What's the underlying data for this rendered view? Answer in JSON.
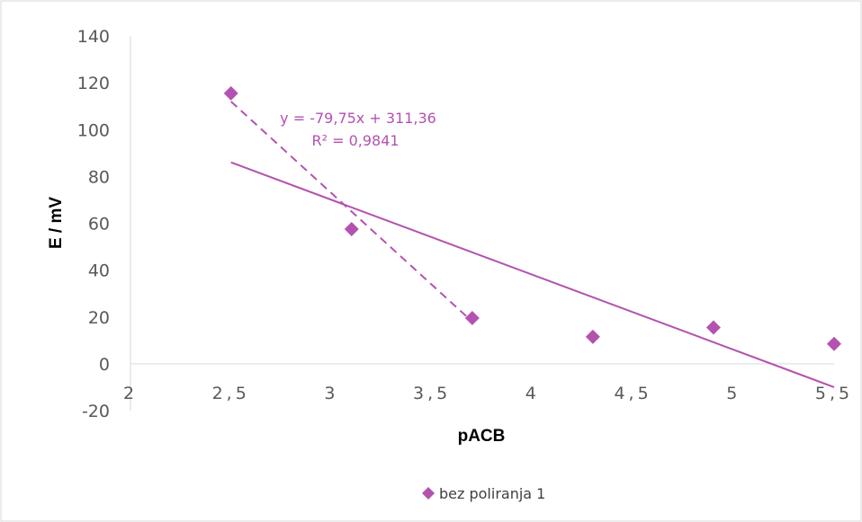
{
  "chart_data": {
    "type": "scatter",
    "xlabel": "pACB",
    "ylabel": "E / mV",
    "xlim": [
      2,
      5.5
    ],
    "ylim": [
      -20,
      140
    ],
    "x_ticks": [
      2,
      2.5,
      3,
      3.5,
      4,
      4.5,
      5,
      5.5
    ],
    "x_tick_labels": [
      "2",
      "2,5",
      "3",
      "3,5",
      "4",
      "4,5",
      "5",
      "5,5"
    ],
    "y_ticks": [
      -20,
      0,
      20,
      40,
      60,
      80,
      100,
      120,
      140
    ],
    "y_tick_labels": [
      "-20",
      "0",
      "20",
      "40",
      "60",
      "80",
      "100",
      "120",
      "140"
    ],
    "series": [
      {
        "name": "bez poliranja 1",
        "marker": "diamond",
        "color": "#b352b0",
        "x": [
          2.5,
          3.1,
          3.7,
          4.3,
          4.9,
          5.5
        ],
        "y": [
          115.5,
          57.5,
          19.5,
          11.5,
          15.5,
          8.5
        ]
      }
    ],
    "trendlines": [
      {
        "style": "solid",
        "color": "#b352b0",
        "x": [
          2.5,
          5.5
        ],
        "y": [
          86,
          -10
        ]
      },
      {
        "style": "dashed",
        "color": "#b352b0",
        "x": [
          2.5,
          3.7
        ],
        "y": [
          112,
          18
        ]
      }
    ],
    "annotation": {
      "equation": "y = -79,75x + 311,36",
      "r2": "R² = 0,9841"
    },
    "legend": "bottom-center",
    "grid": false
  }
}
